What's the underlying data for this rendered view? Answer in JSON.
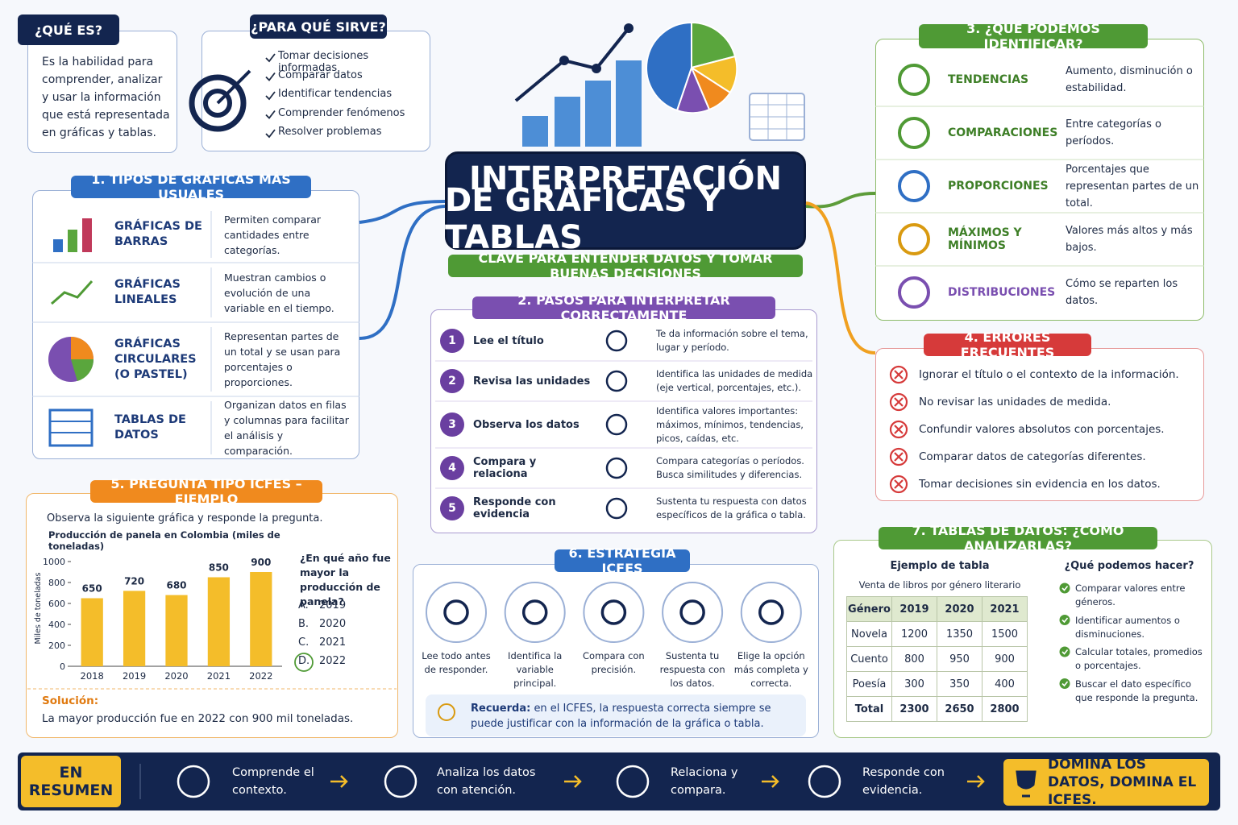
{
  "header": {
    "title_line1": "INTERPRETACIÓN",
    "title_line2": "DE GRÁFICAS Y TABLAS",
    "subtitle": "CLAVE PARA ENTENDER DATOS Y TOMAR BUENAS DECISIONES"
  },
  "que_es": {
    "title": "¿QUÉ ES?",
    "text": "Es la habilidad para comprender, analizar y usar la información que está representada en gráficas y tablas."
  },
  "para_que": {
    "title": "¿PARA QUÉ SIRVE?",
    "items": [
      "Tomar decisiones informadas",
      "Comparar datos",
      "Identificar tendencias",
      "Comprender fenómenos",
      "Resolver problemas"
    ]
  },
  "tipos": {
    "title": "1. TIPOS DE GRÁFICAS MÁS USUALES",
    "rows": [
      {
        "name": "GRÁFICAS DE BARRAS",
        "desc": "Permiten comparar cantidades entre categorías."
      },
      {
        "name": "GRÁFICAS LINEALES",
        "desc": "Muestran cambios o evolución de una variable en el tiempo."
      },
      {
        "name": "GRÁFICAS CIRCULARES (O PASTEL)",
        "desc": "Representan partes de un total y se usan para porcentajes o proporciones."
      },
      {
        "name": "TABLAS DE DATOS",
        "desc": "Organizan datos en filas y columnas para facilitar el análisis y comparación."
      }
    ]
  },
  "pasos": {
    "title": "2. PASOS PARA INTERPRETAR CORRECTAMENTE",
    "steps": [
      {
        "num": 1,
        "name": "Lee el título",
        "desc": "Te da información sobre el tema, lugar y período."
      },
      {
        "num": 2,
        "name": "Revisa las unidades",
        "desc": "Identifica las unidades de medida (eje vertical, porcentajes, etc.)."
      },
      {
        "num": 3,
        "name": "Observa los datos",
        "desc": "Identifica valores importantes: máximos, mínimos, tendencias, picos, caídas, etc."
      },
      {
        "num": 4,
        "name": "Compara y relaciona",
        "desc": "Compara categorías o períodos. Busca similitudes y diferencias."
      },
      {
        "num": 5,
        "name": "Responde con evidencia",
        "desc": "Sustenta tu respuesta con datos específicos de la gráfica o tabla."
      }
    ]
  },
  "identificar": {
    "title": "3. ¿QUÉ PODEMOS IDENTIFICAR?",
    "rows": [
      {
        "name": "TENDENCIAS",
        "desc": "Aumento, disminución o estabilidad."
      },
      {
        "name": "COMPARACIONES",
        "desc": "Entre categorías o períodos."
      },
      {
        "name": "PROPORCIONES",
        "desc": "Porcentajes que representan partes de un total."
      },
      {
        "name": "MÁXIMOS Y MÍNIMOS",
        "desc": "Valores más altos y más bajos."
      },
      {
        "name": "DISTRIBUCIONES",
        "desc": "Cómo se reparten los datos."
      }
    ]
  },
  "errores": {
    "title": "4. ERRORES FRECUENTES",
    "items": [
      "Ignorar el título o el contexto de la información.",
      "No revisar las unidades de medida.",
      "Confundir valores absolutos con porcentajes.",
      "Comparar datos de categorías diferentes.",
      "Tomar decisiones sin evidencia en los datos."
    ]
  },
  "icfes": {
    "title": "5. PREGUNTA TIPO ICFES – EJEMPLO",
    "prompt": "Observa la siguiente gráfica y responde la pregunta.",
    "question": "¿En qué año fue mayor la producción de panela?",
    "options": [
      {
        "letter": "A.",
        "text": "2019"
      },
      {
        "letter": "B.",
        "text": "2020"
      },
      {
        "letter": "C.",
        "text": "2021"
      },
      {
        "letter": "D.",
        "text": "2022",
        "correct": true
      }
    ],
    "solution_label": "Solución:",
    "solution": "La mayor producción fue en 2022 con 900 mil toneladas."
  },
  "chart_data": {
    "type": "bar",
    "title": "Producción de panela en Colombia (miles de toneladas)",
    "y_label": "Miles de toneladas",
    "categories": [
      "2018",
      "2019",
      "2020",
      "2021",
      "2022"
    ],
    "values": [
      650,
      720,
      680,
      850,
      900
    ],
    "color": "#f4bd2a",
    "ylim": [
      0,
      1000
    ],
    "yticks": [
      0,
      200,
      400,
      600,
      800,
      1000
    ]
  },
  "estrategia": {
    "title": "6. ESTRATEGIA ICFES",
    "items": [
      "Lee todo antes de responder.",
      "Identifica la variable principal.",
      "Compara con precisión.",
      "Sustenta tu respuesta con los datos.",
      "Elige la opción más completa y correcta."
    ],
    "tip_label": "Recuerda:",
    "tip": "en el ICFES, la respuesta correcta siempre se puede justificar con la información de la gráfica o tabla."
  },
  "tablas": {
    "title": "7. TABLAS DE DATOS: ¿CÓMO ANALIZARLAS?",
    "example_title": "Ejemplo de tabla",
    "table_caption": "Venta de libros por género literario",
    "header": [
      "Género",
      "2019",
      "2020",
      "2021"
    ],
    "rows": [
      [
        "Novela",
        1200,
        1350,
        1500
      ],
      [
        "Cuento",
        800,
        950,
        900
      ],
      [
        "Poesía",
        300,
        350,
        400
      ],
      [
        "Total",
        2300,
        2650,
        2800
      ]
    ],
    "actions_title": "¿Qué podemos hacer?",
    "actions": [
      "Comparar valores entre géneros.",
      "Identificar aumentos o disminuciones.",
      "Calcular totales, promedios o porcentajes.",
      "Buscar el dato específico que responde la pregunta."
    ]
  },
  "resumen": {
    "label": "EN RESUMEN",
    "steps": [
      "Comprende el contexto.",
      "Analiza los datos con atención.",
      "Relaciona y compara.",
      "Responde con evidencia."
    ],
    "closing": "DOMINA LOS DATOS, DOMINA EL ICFES."
  }
}
